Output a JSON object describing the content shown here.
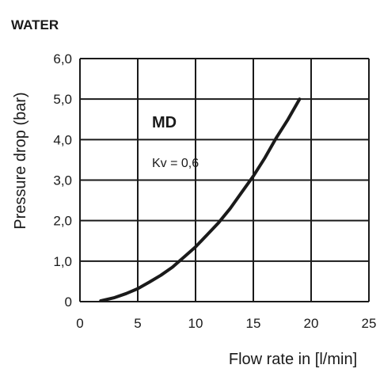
{
  "heading": "WATER",
  "chart_data": {
    "type": "line",
    "title": "",
    "xlabel": "Flow rate in [l/min]",
    "ylabel": "Pressure drop (bar)",
    "xlim": [
      0,
      25
    ],
    "ylim": [
      0,
      6
    ],
    "x_ticks": [
      "0",
      "5",
      "10",
      "15",
      "20",
      "25"
    ],
    "y_ticks": [
      "0",
      "1,0",
      "2,0",
      "3,0",
      "4,0",
      "5,0",
      "6,0"
    ],
    "grid": true,
    "series": [
      {
        "name": "MD",
        "x": [
          1.8,
          3,
          4,
          5,
          6,
          7,
          8,
          9,
          10,
          11,
          12,
          13,
          14,
          15,
          16,
          17,
          18,
          19
        ],
        "y": [
          0.02,
          0.1,
          0.2,
          0.32,
          0.48,
          0.65,
          0.85,
          1.1,
          1.35,
          1.65,
          1.95,
          2.3,
          2.7,
          3.1,
          3.55,
          4.05,
          4.5,
          5.0
        ]
      }
    ],
    "annotations": {
      "model": "MD",
      "kv": "Kv = 0,6"
    }
  }
}
